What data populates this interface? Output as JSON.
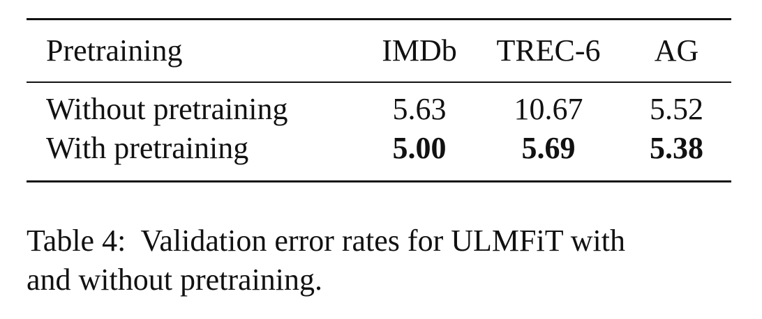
{
  "table": {
    "headers": [
      "Pretraining",
      "IMDb",
      "TREC-6",
      "AG"
    ],
    "rows": [
      {
        "label": "Without pretraining",
        "values": [
          "5.63",
          "10.67",
          "5.52"
        ]
      },
      {
        "label": "With pretraining",
        "values": [
          "5.00",
          "5.69",
          "5.38"
        ]
      }
    ]
  },
  "caption": {
    "line1": "Table 4:  Validation error rates for ULMFiT with",
    "line2": "and without pretraining."
  }
}
